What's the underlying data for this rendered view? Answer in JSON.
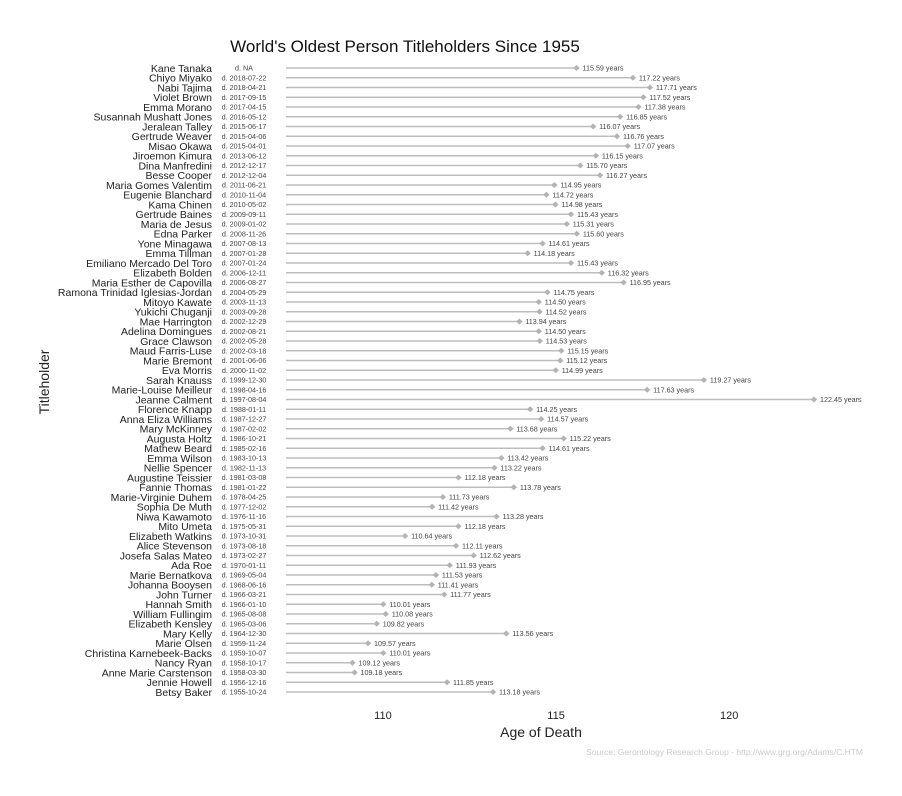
{
  "chart_data": {
    "type": "lollipop",
    "title": "World's Oldest Person Titleholders Since 1955",
    "xlabel": "Age of Death",
    "ylabel": "Titleholder",
    "xlim": [
      107.2,
      122.45
    ],
    "xticks": [
      "110",
      "115",
      "120"
    ],
    "xtick_values": [
      110,
      115,
      120
    ],
    "grid": false,
    "source": "Source: Gerontology Research Group - http://www.grg.org/Adams/C.HTM",
    "colors": {
      "line": "#bdbdbd",
      "marker": "#b3b3b3",
      "text": "#222222"
    },
    "value_suffix": " years",
    "titleholders": [
      {
        "name": "Kane Tanaka",
        "date": "d. NA",
        "age": 115.59
      },
      {
        "name": "Chiyo Miyako",
        "date": "d. 2018-07-22",
        "age": 117.22
      },
      {
        "name": "Nabi Tajima",
        "date": "d. 2018-04-21",
        "age": 117.71
      },
      {
        "name": "Violet Brown",
        "date": "d. 2017-09-15",
        "age": 117.52
      },
      {
        "name": "Emma Morano",
        "date": "d. 2017-04-15",
        "age": 117.38
      },
      {
        "name": "Susannah Mushatt Jones",
        "date": "d. 2016-05-12",
        "age": 116.85
      },
      {
        "name": "Jeralean Talley",
        "date": "d. 2015-06-17",
        "age": 116.07
      },
      {
        "name": "Gertrude Weaver",
        "date": "d. 2015-04-06",
        "age": 116.76
      },
      {
        "name": "Misao Okawa",
        "date": "d. 2015-04-01",
        "age": 117.07
      },
      {
        "name": "Jiroemon Kimura",
        "date": "d. 2013-06-12",
        "age": 116.15
      },
      {
        "name": "Dina Manfredini",
        "date": "d. 2012-12-17",
        "age": 115.7
      },
      {
        "name": "Besse Cooper",
        "date": "d. 2012-12-04",
        "age": 116.27
      },
      {
        "name": "Maria Gomes Valentim",
        "date": "d. 2011-06-21",
        "age": 114.95
      },
      {
        "name": "Eugenie Blanchard",
        "date": "d. 2010-11-04",
        "age": 114.72
      },
      {
        "name": "Kama Chinen",
        "date": "d. 2010-05-02",
        "age": 114.98
      },
      {
        "name": "Gertrude Baines",
        "date": "d. 2009-09-11",
        "age": 115.43
      },
      {
        "name": "Maria de Jesus",
        "date": "d. 2009-01-02",
        "age": 115.31
      },
      {
        "name": "Edna Parker",
        "date": "d. 2008-11-26",
        "age": 115.6
      },
      {
        "name": "Yone Minagawa",
        "date": "d. 2007-08-13",
        "age": 114.61
      },
      {
        "name": "Emma Tillman",
        "date": "d. 2007-01-28",
        "age": 114.18
      },
      {
        "name": "Emiliano Mercado Del Toro",
        "date": "d. 2007-01-24",
        "age": 115.43
      },
      {
        "name": "Elizabeth Bolden",
        "date": "d. 2006-12-11",
        "age": 116.32
      },
      {
        "name": "Maria Esther de Capovilla",
        "date": "d. 2006-08-27",
        "age": 116.95
      },
      {
        "name": "Ramona Trinidad Iglesias-Jordan",
        "date": "d. 2004-05-29",
        "age": 114.75
      },
      {
        "name": "Mitoyo Kawate",
        "date": "d. 2003-11-13",
        "age": 114.5
      },
      {
        "name": "Yukichi Chuganji",
        "date": "d. 2003-09-28",
        "age": 114.52
      },
      {
        "name": "Mae Harrington",
        "date": "d. 2002-12-29",
        "age": 113.94
      },
      {
        "name": "Adelina Domingues",
        "date": "d. 2002-08-21",
        "age": 114.5
      },
      {
        "name": "Grace Clawson",
        "date": "d. 2002-05-28",
        "age": 114.53
      },
      {
        "name": "Maud Farris-Luse",
        "date": "d. 2002-03-18",
        "age": 115.15
      },
      {
        "name": "Marie Bremont",
        "date": "d. 2001-06-06",
        "age": 115.12
      },
      {
        "name": "Eva Morris",
        "date": "d. 2000-11-02",
        "age": 114.99
      },
      {
        "name": "Sarah Knauss",
        "date": "d. 1999-12-30",
        "age": 119.27
      },
      {
        "name": "Marie-Louise Meilleur",
        "date": "d. 1998-04-16",
        "age": 117.63
      },
      {
        "name": "Jeanne Calment",
        "date": "d. 1997-08-04",
        "age": 122.45
      },
      {
        "name": "Florence Knapp",
        "date": "d. 1988-01-11",
        "age": 114.25
      },
      {
        "name": "Anna Eliza Williams",
        "date": "d. 1987-12-27",
        "age": 114.57
      },
      {
        "name": "Mary McKinney",
        "date": "d. 1987-02-02",
        "age": 113.68
      },
      {
        "name": "Augusta Holtz",
        "date": "d. 1986-10-21",
        "age": 115.22
      },
      {
        "name": "Mathew Beard",
        "date": "d. 1985-02-16",
        "age": 114.61
      },
      {
        "name": "Emma Wilson",
        "date": "d. 1983-10-13",
        "age": 113.42
      },
      {
        "name": "Nellie Spencer",
        "date": "d. 1982-11-13",
        "age": 113.22
      },
      {
        "name": "Augustine Teissier",
        "date": "d. 1981-03-08",
        "age": 112.18
      },
      {
        "name": "Fannie Thomas",
        "date": "d. 1981-01-22",
        "age": 113.78
      },
      {
        "name": "Marie-Virginie Duhem",
        "date": "d. 1978-04-25",
        "age": 111.73
      },
      {
        "name": "Sophia De Muth",
        "date": "d. 1977-12-02",
        "age": 111.42
      },
      {
        "name": "Niwa Kawamoto",
        "date": "d. 1976-11-16",
        "age": 113.28
      },
      {
        "name": "Mito Umeta",
        "date": "d. 1975-05-31",
        "age": 112.18
      },
      {
        "name": "Elizabeth Watkins",
        "date": "d. 1973-10-31",
        "age": 110.64
      },
      {
        "name": "Alice Stevenson",
        "date": "d. 1973-08-18",
        "age": 112.11
      },
      {
        "name": "Josefa Salas Mateo",
        "date": "d. 1973-02-27",
        "age": 112.62
      },
      {
        "name": "Ada Roe",
        "date": "d. 1970-01-11",
        "age": 111.93
      },
      {
        "name": "Marie Bernatkova",
        "date": "d. 1969-05-04",
        "age": 111.53
      },
      {
        "name": "Johanna Booysen",
        "date": "d. 1968-06-16",
        "age": 111.41
      },
      {
        "name": "John Turner",
        "date": "d. 1966-03-21",
        "age": 111.77
      },
      {
        "name": "Hannah Smith",
        "date": "d. 1966-01-10",
        "age": 110.01
      },
      {
        "name": "William Fullingim",
        "date": "d. 1965-08-08",
        "age": 110.08
      },
      {
        "name": "Elizabeth Kensley",
        "date": "d. 1965-03-06",
        "age": 109.82
      },
      {
        "name": "Mary Kelly",
        "date": "d. 1964-12-30",
        "age": 113.56
      },
      {
        "name": "Marie Olsen",
        "date": "d. 1959-11-24",
        "age": 109.57
      },
      {
        "name": "Christina Karnebeek-Backs",
        "date": "d. 1959-10-07",
        "age": 110.01
      },
      {
        "name": "Nancy Ryan",
        "date": "d. 1958-10-17",
        "age": 109.12
      },
      {
        "name": "Anne Marie Carstenson",
        "date": "d. 1958-03-30",
        "age": 109.18
      },
      {
        "name": "Jennie Howell",
        "date": "d. 1956-12-16",
        "age": 111.85
      },
      {
        "name": "Betsy Baker",
        "date": "d. 1955-10-24",
        "age": 113.18
      }
    ]
  }
}
